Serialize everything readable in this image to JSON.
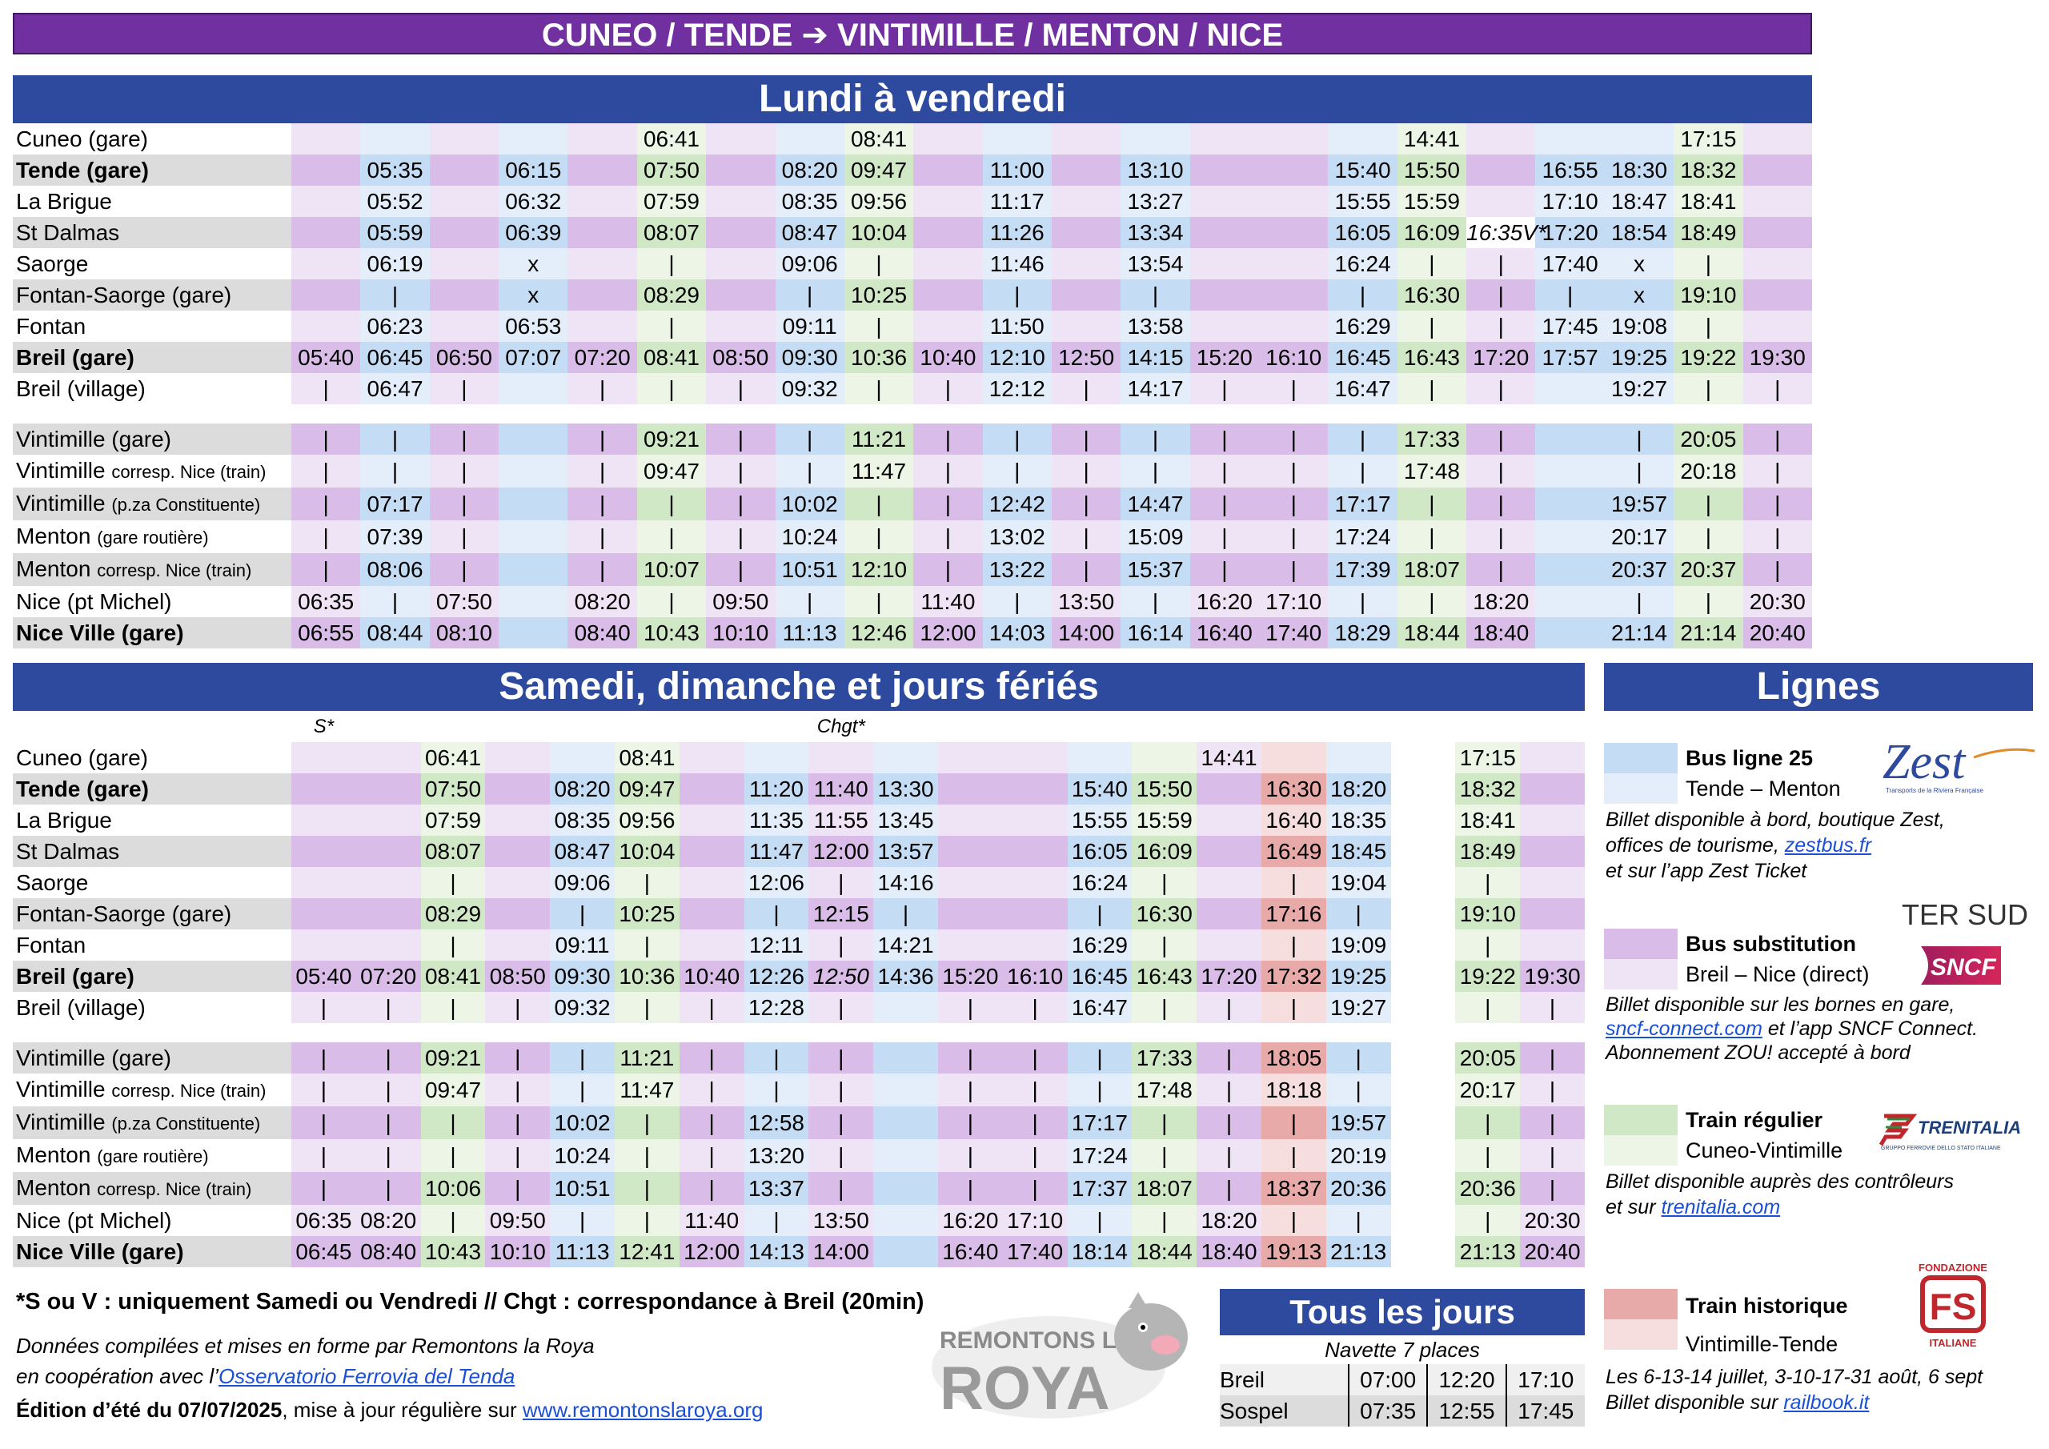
{
  "banner": "CUNEO / TENDE   ➔   VINTIMILLE / MENTON / NICE",
  "weekday": {
    "title": "Lundi à vendredi",
    "rows": [
      {
        "station": "Cuneo (gare)",
        "cells": [
          "",
          "",
          "",
          "",
          "",
          "06:41",
          "",
          "",
          "08:41",
          "",
          "",
          "",
          "",
          "",
          "",
          "",
          "14:41",
          "",
          "",
          "",
          "17:15",
          ""
        ]
      },
      {
        "station": "Tende (gare)",
        "cells": [
          "",
          "05:35",
          "",
          "06:15",
          "",
          "07:50",
          "",
          "08:20",
          "09:47",
          "",
          "11:00",
          "",
          "13:10",
          "",
          "",
          "15:40",
          "15:50",
          "",
          "16:55",
          "18:30",
          "18:32",
          ""
        ]
      },
      {
        "station": "La Brigue",
        "cells": [
          "",
          "05:52",
          "",
          "06:32",
          "",
          "07:59",
          "",
          "08:35",
          "09:56",
          "",
          "11:17",
          "",
          "13:27",
          "",
          "",
          "15:55",
          "15:59",
          "",
          "17:10",
          "18:47",
          "18:41",
          ""
        ]
      },
      {
        "station": "St Dalmas",
        "cells": [
          "",
          "05:59",
          "",
          "06:39",
          "",
          "08:07",
          "",
          "08:47",
          "10:04",
          "",
          "11:26",
          "",
          "13:34",
          "",
          "",
          "16:05",
          "16:09",
          "16:35V*",
          "17:20",
          "18:54",
          "18:49",
          ""
        ]
      },
      {
        "station": "Saorge",
        "cells": [
          "",
          "06:19",
          "",
          "x",
          "",
          "|",
          "",
          "09:06",
          "|",
          "",
          "11:46",
          "",
          "13:54",
          "",
          "",
          "16:24",
          "|",
          "|",
          "17:40",
          "x",
          "|",
          ""
        ]
      },
      {
        "station": "Fontan-Saorge (gare)",
        "cells": [
          "",
          "|",
          "",
          "x",
          "",
          "08:29",
          "",
          "|",
          "10:25",
          "",
          "|",
          "",
          "|",
          "",
          "",
          "|",
          "16:30",
          "|",
          "|",
          "x",
          "19:10",
          ""
        ]
      },
      {
        "station": "Fontan",
        "cells": [
          "",
          "06:23",
          "",
          "06:53",
          "",
          "|",
          "",
          "09:11",
          "|",
          "",
          "11:50",
          "",
          "13:58",
          "",
          "",
          "16:29",
          "|",
          "|",
          "17:45",
          "19:08",
          "|",
          ""
        ]
      },
      {
        "station": "Breil (gare)",
        "cells": [
          "05:40",
          "06:45",
          "06:50",
          "07:07",
          "07:20",
          "08:41",
          "08:50",
          "09:30",
          "10:36",
          "10:40",
          "12:10",
          "12:50",
          "14:15",
          "15:20",
          "16:10",
          "16:45",
          "16:43",
          "17:20",
          "17:57",
          "19:25",
          "19:22",
          "19:30"
        ]
      },
      {
        "station": "Breil (village)",
        "cells": [
          "|",
          "06:47",
          "|",
          "",
          "|",
          "|",
          "|",
          "09:32",
          "|",
          "|",
          "12:12",
          "|",
          "14:17",
          "|",
          "|",
          "16:47",
          "|",
          "|",
          "",
          "19:27",
          "|",
          "|"
        ]
      },
      {
        "station": "Vintimille (gare)",
        "cells": [
          "|",
          "|",
          "|",
          "",
          "|",
          "09:21",
          "|",
          "|",
          "11:21",
          "|",
          "|",
          "|",
          "|",
          "|",
          "|",
          "|",
          "17:33",
          "|",
          "",
          "|",
          "20:05",
          "|"
        ]
      },
      {
        "station": "Vintimille",
        "small": "corresp. Nice (train)",
        "cells": [
          "|",
          "|",
          "|",
          "",
          "|",
          "09:47",
          "|",
          "|",
          "11:47",
          "|",
          "|",
          "|",
          "|",
          "|",
          "|",
          "|",
          "17:48",
          "|",
          "",
          "|",
          "20:18",
          "|"
        ]
      },
      {
        "station": "Vintimille",
        "small": "(p.za Constituente)",
        "cells": [
          "|",
          "07:17",
          "|",
          "",
          "|",
          "|",
          "|",
          "10:02",
          "|",
          "|",
          "12:42",
          "|",
          "14:47",
          "|",
          "|",
          "17:17",
          "|",
          "|",
          "",
          "19:57",
          "|",
          "|"
        ]
      },
      {
        "station": "Menton",
        "small": "(gare routière)",
        "cells": [
          "|",
          "07:39",
          "|",
          "",
          "|",
          "|",
          "|",
          "10:24",
          "|",
          "|",
          "13:02",
          "|",
          "15:09",
          "|",
          "|",
          "17:24",
          "|",
          "|",
          "",
          "20:17",
          "|",
          "|"
        ]
      },
      {
        "station": "Menton",
        "small": "corresp. Nice (train)",
        "cells": [
          "|",
          "08:06",
          "|",
          "",
          "|",
          "10:07",
          "|",
          "10:51",
          "12:10",
          "|",
          "13:22",
          "|",
          "15:37",
          "|",
          "|",
          "17:39",
          "18:07",
          "|",
          "",
          "20:37",
          "20:37",
          "|"
        ]
      },
      {
        "station": "Nice (pt Michel)",
        "cells": [
          "06:35",
          "|",
          "07:50",
          "",
          "08:20",
          "|",
          "09:50",
          "|",
          "|",
          "11:40",
          "|",
          "13:50",
          "|",
          "16:20",
          "17:10",
          "|",
          "|",
          "18:20",
          "",
          "|",
          "|",
          "20:30"
        ]
      },
      {
        "station": "Nice Ville (gare)",
        "cells": [
          "06:55",
          "08:44",
          "08:10",
          "",
          "08:40",
          "10:43",
          "10:10",
          "11:13",
          "12:46",
          "12:00",
          "14:03",
          "14:00",
          "16:14",
          "16:40",
          "17:40",
          "18:29",
          "18:44",
          "18:40",
          "",
          "21:14",
          "21:14",
          "20:40"
        ]
      }
    ]
  },
  "weekend": {
    "title": "Samedi, dimanche et jours fériés",
    "notes": [
      "S*",
      "Chgt*"
    ],
    "rows": [
      {
        "station": "Cuneo (gare)",
        "cells": [
          "",
          "",
          "06:41",
          "",
          "",
          "08:41",
          "",
          "",
          "",
          "",
          "",
          "",
          "",
          "",
          "14:41",
          "",
          "",
          "",
          "17:15",
          ""
        ]
      },
      {
        "station": "Tende (gare)",
        "cells": [
          "",
          "",
          "07:50",
          "",
          "08:20",
          "09:47",
          "",
          "11:20",
          "11:40",
          "13:30",
          "",
          "",
          "15:40",
          "15:50",
          "",
          "16:30",
          "18:20",
          "",
          "18:32",
          ""
        ]
      },
      {
        "station": "La Brigue",
        "cells": [
          "",
          "",
          "07:59",
          "",
          "08:35",
          "09:56",
          "",
          "11:35",
          "11:55",
          "13:45",
          "",
          "",
          "15:55",
          "15:59",
          "",
          "16:40",
          "18:35",
          "",
          "18:41",
          ""
        ]
      },
      {
        "station": "St Dalmas",
        "cells": [
          "",
          "",
          "08:07",
          "",
          "08:47",
          "10:04",
          "",
          "11:47",
          "12:00",
          "13:57",
          "",
          "",
          "16:05",
          "16:09",
          "",
          "16:49",
          "18:45",
          "",
          "18:49",
          ""
        ]
      },
      {
        "station": "Saorge",
        "cells": [
          "",
          "",
          "|",
          "",
          "09:06",
          "|",
          "",
          "12:06",
          "|",
          "14:16",
          "",
          "",
          "16:24",
          "|",
          "",
          "|",
          "19:04",
          "",
          "|",
          ""
        ]
      },
      {
        "station": "Fontan-Saorge (gare)",
        "cells": [
          "",
          "",
          "08:29",
          "",
          "|",
          "10:25",
          "",
          "|",
          "12:15",
          "|",
          "",
          "",
          "|",
          "16:30",
          "",
          "17:16",
          "|",
          "",
          "19:10",
          ""
        ]
      },
      {
        "station": "Fontan",
        "cells": [
          "",
          "",
          "|",
          "",
          "09:11",
          "|",
          "",
          "12:11",
          "|",
          "14:21",
          "",
          "",
          "16:29",
          "|",
          "",
          "|",
          "19:09",
          "",
          "|",
          ""
        ]
      },
      {
        "station": "Breil (gare)",
        "cells": [
          "05:40",
          "07:20",
          "08:41",
          "08:50",
          "09:30",
          "10:36",
          "10:40",
          "12:26",
          "12:50",
          "14:36",
          "15:20",
          "16:10",
          "16:45",
          "16:43",
          "17:20",
          "17:32",
          "19:25",
          "",
          "19:22",
          "19:30"
        ]
      },
      {
        "station": "Breil (village)",
        "cells": [
          "|",
          "|",
          "|",
          "|",
          "09:32",
          "|",
          "|",
          "12:28",
          "|",
          "",
          "|",
          "|",
          "16:47",
          "|",
          "|",
          "|",
          "19:27",
          "",
          "|",
          "|"
        ]
      },
      {
        "station": "Vintimille (gare)",
        "cells": [
          "|",
          "|",
          "09:21",
          "|",
          "|",
          "11:21",
          "|",
          "|",
          "|",
          "",
          "|",
          "|",
          "|",
          "17:33",
          "|",
          "18:05",
          "|",
          "",
          "20:05",
          "|"
        ]
      },
      {
        "station": "Vintimille",
        "small": "corresp. Nice (train)",
        "cells": [
          "|",
          "|",
          "09:47",
          "|",
          "|",
          "11:47",
          "|",
          "|",
          "|",
          "",
          "|",
          "|",
          "|",
          "17:48",
          "|",
          "18:18",
          "|",
          "",
          "20:17",
          "|"
        ]
      },
      {
        "station": "Vintimille",
        "small": "(p.za Constituente)",
        "cells": [
          "|",
          "|",
          "|",
          "|",
          "10:02",
          "|",
          "|",
          "12:58",
          "|",
          "",
          "|",
          "|",
          "17:17",
          "|",
          "|",
          "|",
          "19:57",
          "",
          "|",
          "|"
        ]
      },
      {
        "station": "Menton",
        "small": "(gare routière)",
        "cells": [
          "|",
          "|",
          "|",
          "|",
          "10:24",
          "|",
          "|",
          "13:20",
          "|",
          "",
          "|",
          "|",
          "17:24",
          "|",
          "|",
          "|",
          "20:19",
          "",
          "|",
          "|"
        ]
      },
      {
        "station": "Menton",
        "small": "corresp. Nice (train)",
        "cells": [
          "|",
          "|",
          "10:06",
          "|",
          "10:51",
          "|",
          "|",
          "13:37",
          "|",
          "",
          "|",
          "|",
          "17:37",
          "18:07",
          "|",
          "18:37",
          "20:36",
          "",
          "20:36",
          "|"
        ]
      },
      {
        "station": "Nice (pt Michel)",
        "cells": [
          "06:35",
          "08:20",
          "|",
          "09:50",
          "|",
          "|",
          "11:40",
          "|",
          "13:50",
          "",
          "16:20",
          "17:10",
          "|",
          "|",
          "18:20",
          "|",
          "|",
          "",
          "|",
          "20:30"
        ]
      },
      {
        "station": "Nice Ville (gare)",
        "cells": [
          "06:45",
          "08:40",
          "10:43",
          "10:10",
          "11:13",
          "12:41",
          "12:00",
          "14:13",
          "14:00",
          "",
          "16:40",
          "17:40",
          "18:14",
          "18:44",
          "18:40",
          "19:13",
          "21:13",
          "",
          "21:13",
          "20:40"
        ]
      }
    ]
  },
  "lignes": {
    "title": "Lignes",
    "items": [
      {
        "name": "Bus ligne 25",
        "sub": "Tende – Menton",
        "logo": "Zest",
        "logo_sub": "Transports de la Riviera Française",
        "note": [
          "Billet disponible à bord, boutique Zest,",
          "offices de tourisme, ",
          "zestbus.fr",
          "et sur l’app Zest Ticket"
        ]
      },
      {
        "name": "Bus substitution",
        "sub": "Breil – Nice (direct)",
        "logo": "SNCF",
        "logo_top": "TER SUD",
        "note": [
          "Billet disponible sur les bornes en gare,",
          "sncf-connect.com",
          " et l’app SNCF Connect.",
          "Abonnement ZOU! accepté à bord"
        ]
      },
      {
        "name": "Train régulier",
        "sub": "Cuneo-Vintimille",
        "logo": "TRENITALIA",
        "logo_sub": "GRUPPO FERROVIE DELLO STATO ITALIANE",
        "note": [
          "Billet disponible auprès des contrôleurs",
          "et sur ",
          "trenitalia.com"
        ]
      },
      {
        "name": "Train historique",
        "sub": "Vintimille-Tende",
        "logo": "FS",
        "logo_top": "FONDAZIONE",
        "logo_sub": "ITALIANE",
        "note": [
          "Les 6-13-14 juillet, 3-10-17-31 août, 6 sept",
          "Billet disponible sur ",
          "railbook.it"
        ]
      }
    ]
  },
  "tous": {
    "title": "Tous les jours",
    "sub": "Navette 7 places",
    "rows": [
      {
        "station": "Breil",
        "times": [
          "07:00",
          "12:20",
          "17:10"
        ]
      },
      {
        "station": "Sospel",
        "times": [
          "07:35",
          "12:55",
          "17:45"
        ]
      }
    ]
  },
  "footer": {
    "line1": "*S ou V : uniquement Samedi ou Vendredi // Chgt : correspondance à Breil (20min)",
    "line2": "Données compilées et mises en forme par Remontons la Roya",
    "line3a": "en coopération avec l’",
    "line3b": "Osservatorio Ferrovia del Tenda",
    "line4a": "Édition d’été du 07/07/2025",
    "line4b": ", mise à jour régulière sur ",
    "line4c": "www.remontonslaroya.org",
    "logo_top": "REMONTONS LA",
    "logo_bottom": "ROYA"
  },
  "colors": {
    "blue": "#c5dcf5",
    "purple": "#d9bde8",
    "green": "#d0e8c5",
    "red": "#e8a9a9",
    "title": "#2e4a9e",
    "banner": "#7030a0"
  }
}
